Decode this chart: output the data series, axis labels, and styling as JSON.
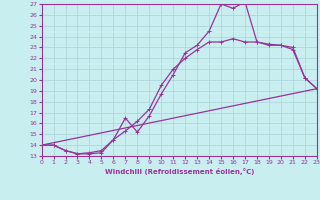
{
  "xlabel": "Windchill (Refroidissement éolien,°C)",
  "background_color": "#c8eef0",
  "grid_color": "#b0d8dc",
  "line_color": "#993399",
  "xlim": [
    0,
    23
  ],
  "ylim": [
    13,
    27
  ],
  "xticks": [
    0,
    1,
    2,
    3,
    4,
    5,
    6,
    7,
    8,
    9,
    10,
    11,
    12,
    13,
    14,
    15,
    16,
    17,
    18,
    19,
    20,
    21,
    22,
    23
  ],
  "yticks": [
    13,
    14,
    15,
    16,
    17,
    18,
    19,
    20,
    21,
    22,
    23,
    24,
    25,
    26,
    27
  ],
  "curve1_x": [
    0,
    1,
    2,
    3,
    4,
    5,
    6,
    7,
    8,
    9,
    10,
    11,
    12,
    13,
    14,
    15,
    16,
    17,
    18,
    19,
    20,
    21,
    22,
    23
  ],
  "curve1_y": [
    14.0,
    14.0,
    13.5,
    13.2,
    13.2,
    13.3,
    14.5,
    16.5,
    15.2,
    16.7,
    18.7,
    20.5,
    22.5,
    23.2,
    24.5,
    27.0,
    26.6,
    27.2,
    23.5,
    23.2,
    23.2,
    22.8,
    20.2,
    19.2
  ],
  "curve2_x": [
    0,
    1,
    2,
    3,
    4,
    5,
    6,
    7,
    8,
    9,
    10,
    11,
    12,
    13,
    14,
    15,
    16,
    17,
    18,
    19,
    20,
    21,
    22,
    23
  ],
  "curve2_y": [
    14.0,
    14.0,
    13.5,
    13.2,
    13.3,
    13.5,
    14.5,
    15.3,
    16.2,
    17.3,
    19.5,
    21.0,
    22.0,
    22.8,
    23.5,
    23.5,
    23.8,
    23.5,
    23.5,
    23.3,
    23.2,
    23.0,
    20.2,
    19.2
  ],
  "curve3_x": [
    0,
    23
  ],
  "curve3_y": [
    14.0,
    19.2
  ]
}
